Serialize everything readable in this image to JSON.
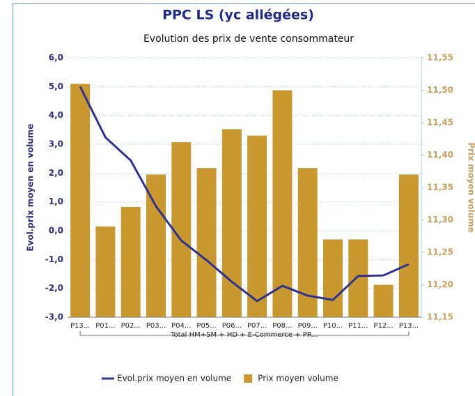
{
  "chart_data": {
    "type": "bar-line",
    "title": "PPC LS (yc allégées)",
    "subtitle": "Evolution des prix de vente consommateur",
    "y_label": "Evol.prix moyen en volume",
    "y2_label": "Prix moyen volume",
    "group_label": "Total HM+SM + HD + E-Commerce + PR...",
    "categories": [
      "P13...",
      "P01...",
      "P02...",
      "P03...",
      "P04...",
      "P05...",
      "P06...",
      "P07...",
      "P08...",
      "P09...",
      "P10...",
      "P11...",
      "P12...",
      "P13..."
    ],
    "series": [
      {
        "name": "Evol.prix moyen en volume",
        "type": "line",
        "color": "#2e3192",
        "axis": "y",
        "values": [
          5.0,
          3.24,
          2.44,
          0.85,
          -0.34,
          -1.02,
          -1.77,
          -2.44,
          -1.91,
          -2.25,
          -2.4,
          -1.57,
          -1.55,
          -1.16
        ]
      },
      {
        "name": "Prix moyen volume",
        "type": "bar",
        "color": "#c9992f",
        "axis": "y2",
        "values": [
          11.51,
          11.29,
          11.32,
          11.37,
          11.42,
          11.38,
          11.44,
          11.43,
          11.5,
          11.38,
          11.27,
          11.27,
          11.2,
          11.37
        ]
      }
    ],
    "ylim": [
      -3,
      6
    ],
    "yticks": [
      {
        "value": 6,
        "label": "6,0"
      },
      {
        "value": 5,
        "label": "5,0"
      },
      {
        "value": 4,
        "label": "4,0"
      },
      {
        "value": 3,
        "label": "3,0"
      },
      {
        "value": 2,
        "label": "2,0"
      },
      {
        "value": 1,
        "label": "1,0"
      },
      {
        "value": 0,
        "label": "0,0"
      },
      {
        "value": -1,
        "label": "-1,0"
      },
      {
        "value": -2,
        "label": "-2,0"
      },
      {
        "value": -3,
        "label": "-3,0"
      }
    ],
    "y2lim": [
      11.15,
      11.55
    ],
    "y2ticks": [
      {
        "value": 11.55,
        "label": "11,55"
      },
      {
        "value": 11.5,
        "label": "11,50"
      },
      {
        "value": 11.45,
        "label": "11,45"
      },
      {
        "value": 11.4,
        "label": "11,40"
      },
      {
        "value": 11.35,
        "label": "11,35"
      },
      {
        "value": 11.3,
        "label": "11,30"
      },
      {
        "value": 11.25,
        "label": "11,25"
      },
      {
        "value": 11.2,
        "label": "11,20"
      },
      {
        "value": 11.15,
        "label": "11,15"
      }
    ],
    "grid": true,
    "legend": "bottom"
  }
}
